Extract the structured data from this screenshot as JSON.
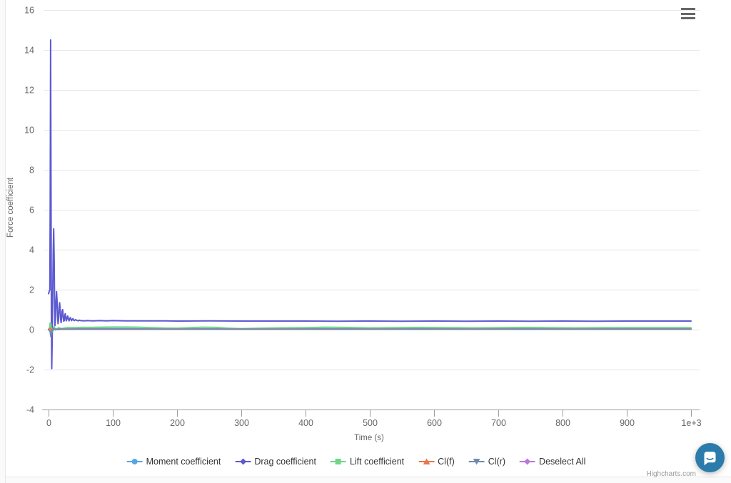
{
  "page": {
    "credit": "Highcharts.com"
  },
  "icons": {
    "context_menu": "hamburger-menu-icon",
    "chat": "chat-bubble-icon"
  },
  "colors": {
    "grid_line": "#e6e6e6",
    "axis_line": "#989ea4",
    "tick_label": "#666666",
    "axis_title": "#666666",
    "legend_text": "#333333",
    "context_icon": "#666666",
    "chat_launcher": "#2b7cab",
    "credit_text": "#9a9a9a"
  },
  "chart_data": {
    "type": "line",
    "title": "",
    "xlabel": "Time (s)",
    "ylabel": "Force coefficient",
    "xlim": [
      0,
      1013
    ],
    "ylim": [
      -4,
      16
    ],
    "grid": {
      "horizontal": true,
      "vertical": false
    },
    "legend_position": "bottom",
    "xticks": {
      "values": [
        0,
        100,
        200,
        300,
        400,
        500,
        600,
        700,
        800,
        900,
        1000
      ],
      "labels": [
        "0",
        "100",
        "200",
        "300",
        "400",
        "500",
        "600",
        "700",
        "800",
        "900",
        "1e+3"
      ]
    },
    "yticks": {
      "values": [
        -4,
        -2,
        0,
        2,
        4,
        6,
        8,
        10,
        12,
        14,
        16
      ],
      "labels": [
        "-4",
        "-2",
        "0",
        "2",
        "4",
        "6",
        "8",
        "10",
        "12",
        "14",
        "16"
      ]
    },
    "series": [
      {
        "name": "Moment coefficient",
        "color": "#55a7e3",
        "marker": "circle",
        "points": [
          [
            0,
            0
          ],
          [
            2.5,
            0.12
          ],
          [
            4,
            0.05
          ],
          [
            5.5,
            -0.15
          ],
          [
            7,
            -0.05
          ],
          [
            9,
            0.05
          ],
          [
            11,
            0.02
          ],
          [
            15,
            0
          ],
          [
            20,
            0.02
          ],
          [
            30,
            0.03
          ],
          [
            50,
            0.04
          ],
          [
            80,
            0.05
          ],
          [
            120,
            0.05
          ],
          [
            160,
            0.04
          ],
          [
            200,
            0.04
          ],
          [
            300,
            0.04
          ],
          [
            400,
            0.05
          ],
          [
            500,
            0.04
          ],
          [
            600,
            0.05
          ],
          [
            700,
            0.04
          ],
          [
            800,
            0.05
          ],
          [
            900,
            0.04
          ],
          [
            1000,
            0.05
          ]
        ]
      },
      {
        "name": "Drag coefficient",
        "color": "#5d5ad1",
        "marker": "diamond",
        "points": [
          [
            0,
            1.8
          ],
          [
            2,
            2.0
          ],
          [
            2.6,
            6
          ],
          [
            3.2,
            14.5
          ],
          [
            3.8,
            8
          ],
          [
            4.4,
            0.5
          ],
          [
            5,
            -1.95
          ],
          [
            5.6,
            -0.8
          ],
          [
            6.4,
            1.5
          ],
          [
            7.2,
            3.8
          ],
          [
            8,
            5.05
          ],
          [
            8.8,
            3.5
          ],
          [
            9.4,
            1.2
          ],
          [
            10,
            0.2
          ],
          [
            10.8,
            0.5
          ],
          [
            11.6,
            1.4
          ],
          [
            12.4,
            1.9
          ],
          [
            13.2,
            1.5
          ],
          [
            14,
            0.7
          ],
          [
            14.8,
            0.3
          ],
          [
            15.6,
            0.5
          ],
          [
            16.4,
            1.1
          ],
          [
            17.2,
            1.35
          ],
          [
            18,
            1.05
          ],
          [
            18.8,
            0.55
          ],
          [
            19.6,
            0.35
          ],
          [
            20.4,
            0.6
          ],
          [
            21.2,
            0.95
          ],
          [
            22,
            1.0
          ],
          [
            22.8,
            0.7
          ],
          [
            23.6,
            0.42
          ],
          [
            24.4,
            0.45
          ],
          [
            25.2,
            0.7
          ],
          [
            26,
            0.8
          ],
          [
            26.8,
            0.6
          ],
          [
            27.6,
            0.44
          ],
          [
            28.4,
            0.5
          ],
          [
            29.2,
            0.65
          ],
          [
            30,
            0.68
          ],
          [
            31,
            0.52
          ],
          [
            32,
            0.44
          ],
          [
            33,
            0.55
          ],
          [
            34,
            0.6
          ],
          [
            35,
            0.5
          ],
          [
            36,
            0.45
          ],
          [
            37,
            0.52
          ],
          [
            38,
            0.55
          ],
          [
            39,
            0.48
          ],
          [
            40,
            0.45
          ],
          [
            42,
            0.5
          ],
          [
            44,
            0.46
          ],
          [
            46,
            0.44
          ],
          [
            48,
            0.47
          ],
          [
            50,
            0.45
          ],
          [
            55,
            0.44
          ],
          [
            60,
            0.45
          ],
          [
            70,
            0.44
          ],
          [
            80,
            0.45
          ],
          [
            90,
            0.44
          ],
          [
            100,
            0.45
          ],
          [
            120,
            0.44
          ],
          [
            140,
            0.44
          ],
          [
            160,
            0.44
          ],
          [
            180,
            0.44
          ],
          [
            200,
            0.43
          ],
          [
            250,
            0.44
          ],
          [
            300,
            0.43
          ],
          [
            350,
            0.43
          ],
          [
            400,
            0.43
          ],
          [
            450,
            0.42
          ],
          [
            500,
            0.43
          ],
          [
            550,
            0.42
          ],
          [
            600,
            0.43
          ],
          [
            650,
            0.42
          ],
          [
            700,
            0.43
          ],
          [
            750,
            0.42
          ],
          [
            800,
            0.43
          ],
          [
            850,
            0.42
          ],
          [
            900,
            0.43
          ],
          [
            950,
            0.43
          ],
          [
            1000,
            0.43
          ]
        ]
      },
      {
        "name": "Lift coefficient",
        "color": "#6fd687",
        "marker": "square",
        "points": [
          [
            0,
            0.02
          ],
          [
            1.5,
            0.05
          ],
          [
            2.5,
            0.33
          ],
          [
            3.5,
            0.3
          ],
          [
            4.5,
            0.05
          ],
          [
            5.5,
            -0.12
          ],
          [
            6.5,
            -0.05
          ],
          [
            8,
            0.12
          ],
          [
            9,
            0.15
          ],
          [
            10,
            0.05
          ],
          [
            11,
            -0.02
          ],
          [
            12,
            0
          ],
          [
            14,
            0.06
          ],
          [
            16,
            0.1
          ],
          [
            18,
            0.08
          ],
          [
            20,
            0.05
          ],
          [
            25,
            0.08
          ],
          [
            30,
            0.1
          ],
          [
            40,
            0.1
          ],
          [
            50,
            0.11
          ],
          [
            60,
            0.11
          ],
          [
            80,
            0.12
          ],
          [
            100,
            0.13
          ],
          [
            120,
            0.13
          ],
          [
            140,
            0.12
          ],
          [
            160,
            0.1
          ],
          [
            180,
            0.08
          ],
          [
            200,
            0.07
          ],
          [
            220,
            0.1
          ],
          [
            240,
            0.12
          ],
          [
            260,
            0.11
          ],
          [
            280,
            0.07
          ],
          [
            300,
            0.05
          ],
          [
            330,
            0.07
          ],
          [
            360,
            0.09
          ],
          [
            400,
            0.1
          ],
          [
            430,
            0.12
          ],
          [
            460,
            0.11
          ],
          [
            500,
            0.09
          ],
          [
            540,
            0.1
          ],
          [
            580,
            0.11
          ],
          [
            620,
            0.1
          ],
          [
            660,
            0.09
          ],
          [
            700,
            0.1
          ],
          [
            740,
            0.11
          ],
          [
            780,
            0.1
          ],
          [
            820,
            0.09
          ],
          [
            860,
            0.1
          ],
          [
            900,
            0.1
          ],
          [
            950,
            0.1
          ],
          [
            1000,
            0.1
          ]
        ]
      },
      {
        "name": "Cl(f)",
        "color": "#e8764d",
        "marker": "triangle",
        "points": [
          [
            0,
            0
          ],
          [
            2.5,
            0.08
          ],
          [
            4,
            -0.05
          ],
          [
            6,
            0.04
          ],
          [
            10,
            0.02
          ],
          [
            20,
            0.03
          ],
          [
            50,
            0.03
          ],
          [
            100,
            0.03
          ],
          [
            200,
            0.03
          ],
          [
            300,
            0.03
          ],
          [
            500,
            0.03
          ],
          [
            700,
            0.03
          ],
          [
            1000,
            0.03
          ]
        ]
      },
      {
        "name": "Cl(r)",
        "color": "#7189ae",
        "marker": "triangle-down",
        "points": [
          [
            0,
            0
          ],
          [
            2.5,
            -0.1
          ],
          [
            3.5,
            -0.35
          ],
          [
            5,
            -0.1
          ],
          [
            7,
            0.05
          ],
          [
            10,
            0.02
          ],
          [
            20,
            0.02
          ],
          [
            50,
            0.02
          ],
          [
            100,
            0.02
          ],
          [
            200,
            0.02
          ],
          [
            300,
            0.02
          ],
          [
            500,
            0.02
          ],
          [
            700,
            0.02
          ],
          [
            1000,
            0.02
          ]
        ]
      },
      {
        "name": "Deselect All",
        "color": "#bd75e0",
        "marker": "diamond",
        "points": []
      }
    ]
  }
}
